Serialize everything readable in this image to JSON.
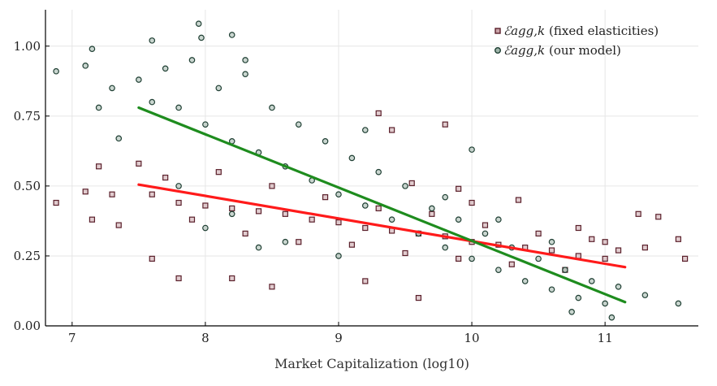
{
  "chart_data": {
    "type": "scatter",
    "xlabel": "Market Capitalization (log10)",
    "ylabel": "",
    "xlim": [
      6.8,
      11.7
    ],
    "ylim": [
      0.0,
      1.13
    ],
    "x_ticks": [
      7,
      8,
      9,
      10,
      11
    ],
    "x_tick_labels": [
      "7",
      "8",
      "9",
      "10",
      "11"
    ],
    "y_ticks": [
      0.0,
      0.25,
      0.5,
      0.75,
      1.0
    ],
    "y_tick_labels": [
      "0.00",
      "0.25",
      "0.50",
      "0.75",
      "1.00"
    ],
    "grid": true,
    "legend_position": "top-right",
    "series": [
      {
        "name": "(fixed elasticities)",
        "symbol": "ℰagg,k",
        "marker": "square",
        "color": "#5a1f2a",
        "fit_line": {
          "x": [
            7.5,
            11.15
          ],
          "y": [
            0.505,
            0.21
          ],
          "color": "#ff1a1a"
        },
        "points": [
          [
            7.6,
            0.47
          ],
          [
            7.8,
            0.44
          ],
          [
            8.0,
            0.43
          ],
          [
            8.2,
            0.42
          ],
          [
            8.4,
            0.41
          ],
          [
            8.6,
            0.4
          ],
          [
            8.8,
            0.38
          ],
          [
            9.0,
            0.37
          ],
          [
            9.2,
            0.35
          ],
          [
            9.4,
            0.34
          ],
          [
            9.6,
            0.33
          ],
          [
            9.8,
            0.32
          ],
          [
            10.0,
            0.3
          ],
          [
            10.2,
            0.29
          ],
          [
            10.4,
            0.28
          ],
          [
            10.6,
            0.27
          ],
          [
            10.8,
            0.25
          ],
          [
            11.0,
            0.24
          ],
          [
            7.5,
            0.58
          ],
          [
            7.7,
            0.53
          ],
          [
            7.9,
            0.38
          ],
          [
            8.1,
            0.55
          ],
          [
            8.3,
            0.33
          ],
          [
            8.5,
            0.5
          ],
          [
            8.7,
            0.3
          ],
          [
            8.9,
            0.46
          ],
          [
            9.1,
            0.29
          ],
          [
            9.3,
            0.42
          ],
          [
            9.5,
            0.26
          ],
          [
            9.7,
            0.4
          ],
          [
            9.9,
            0.24
          ],
          [
            10.1,
            0.36
          ],
          [
            10.3,
            0.22
          ],
          [
            10.5,
            0.33
          ],
          [
            10.7,
            0.2
          ],
          [
            10.9,
            0.31
          ],
          [
            11.1,
            0.27
          ],
          [
            11.3,
            0.28
          ],
          [
            11.55,
            0.31
          ],
          [
            6.88,
            0.44
          ],
          [
            7.1,
            0.48
          ],
          [
            7.15,
            0.38
          ],
          [
            7.3,
            0.47
          ],
          [
            7.35,
            0.36
          ],
          [
            7.2,
            0.57
          ],
          [
            9.3,
            0.76
          ],
          [
            9.8,
            0.72
          ],
          [
            9.4,
            0.7
          ],
          [
            10.35,
            0.45
          ],
          [
            11.0,
            0.3
          ],
          [
            11.4,
            0.39
          ],
          [
            11.25,
            0.4
          ],
          [
            11.6,
            0.24
          ],
          [
            7.6,
            0.24
          ],
          [
            8.5,
            0.14
          ],
          [
            9.6,
            0.1
          ],
          [
            9.2,
            0.16
          ],
          [
            8.2,
            0.17
          ],
          [
            7.8,
            0.17
          ],
          [
            10.8,
            0.35
          ],
          [
            10.0,
            0.44
          ],
          [
            9.9,
            0.49
          ],
          [
            9.55,
            0.51
          ]
        ]
      },
      {
        "name": "(our model)",
        "symbol": "ℰagg,k",
        "marker": "circle",
        "color": "#1f3f33",
        "fit_line": {
          "x": [
            7.5,
            11.15
          ],
          "y": [
            0.78,
            0.085
          ],
          "color": "#1e8c1e"
        },
        "points": [
          [
            7.6,
            0.8
          ],
          [
            7.8,
            0.78
          ],
          [
            8.0,
            0.72
          ],
          [
            8.2,
            0.66
          ],
          [
            8.4,
            0.62
          ],
          [
            8.6,
            0.57
          ],
          [
            8.8,
            0.52
          ],
          [
            9.0,
            0.47
          ],
          [
            9.2,
            0.43
          ],
          [
            9.4,
            0.38
          ],
          [
            9.6,
            0.33
          ],
          [
            9.8,
            0.28
          ],
          [
            10.0,
            0.24
          ],
          [
            10.2,
            0.2
          ],
          [
            10.4,
            0.16
          ],
          [
            10.6,
            0.13
          ],
          [
            10.8,
            0.1
          ],
          [
            11.0,
            0.08
          ],
          [
            7.5,
            0.88
          ],
          [
            7.7,
            0.92
          ],
          [
            7.9,
            0.95
          ],
          [
            8.1,
            0.85
          ],
          [
            8.3,
            0.9
          ],
          [
            8.5,
            0.78
          ],
          [
            8.7,
            0.72
          ],
          [
            8.9,
            0.66
          ],
          [
            9.1,
            0.6
          ],
          [
            9.3,
            0.55
          ],
          [
            9.5,
            0.5
          ],
          [
            9.7,
            0.42
          ],
          [
            9.9,
            0.38
          ],
          [
            10.1,
            0.33
          ],
          [
            10.3,
            0.28
          ],
          [
            10.5,
            0.24
          ],
          [
            10.7,
            0.2
          ],
          [
            10.9,
            0.16
          ],
          [
            11.1,
            0.14
          ],
          [
            6.88,
            0.91
          ],
          [
            7.1,
            0.93
          ],
          [
            7.15,
            0.99
          ],
          [
            7.2,
            0.78
          ],
          [
            7.3,
            0.85
          ],
          [
            7.35,
            0.67
          ],
          [
            7.95,
            1.08
          ],
          [
            7.97,
            1.03
          ],
          [
            8.2,
            1.04
          ],
          [
            7.6,
            1.02
          ],
          [
            8.3,
            0.95
          ],
          [
            10.0,
            0.63
          ],
          [
            9.2,
            0.7
          ],
          [
            11.55,
            0.08
          ],
          [
            11.3,
            0.11
          ],
          [
            11.05,
            0.03
          ],
          [
            10.75,
            0.05
          ],
          [
            9.0,
            0.25
          ],
          [
            8.6,
            0.3
          ],
          [
            8.2,
            0.4
          ],
          [
            7.8,
            0.5
          ],
          [
            10.2,
            0.38
          ],
          [
            10.6,
            0.3
          ],
          [
            9.8,
            0.46
          ],
          [
            8.0,
            0.35
          ],
          [
            8.4,
            0.28
          ]
        ]
      }
    ]
  }
}
